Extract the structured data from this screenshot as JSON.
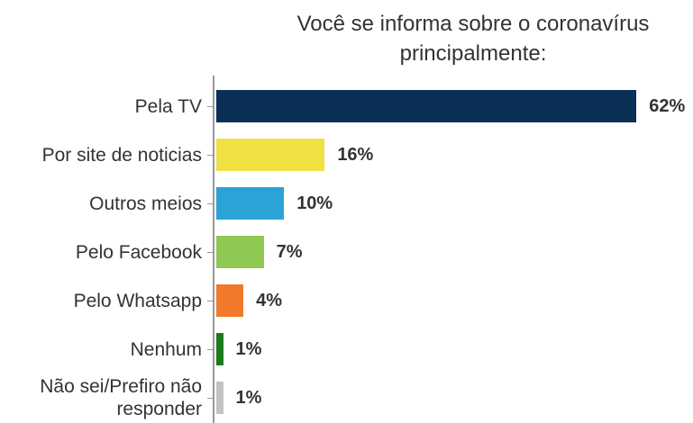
{
  "chart_data": {
    "type": "bar",
    "orientation": "horizontal",
    "title": "Você se informa sobre o coronavírus principalmente:",
    "categories": [
      "Pela TV",
      "Por site de noticias",
      "Outros meios",
      "Pelo Facebook",
      "Pelo Whatsapp",
      "Nenhum",
      "Não sei/Prefiro não responder"
    ],
    "values": [
      62,
      16,
      10,
      7,
      4,
      1,
      1
    ],
    "value_labels": [
      "62%",
      "16%",
      "10%",
      "7%",
      "4%",
      "1%",
      "1%"
    ],
    "colors": [
      "#0b2f57",
      "#f0e044",
      "#2ba3d6",
      "#8fc853",
      "#f07a2a",
      "#1c7a1c",
      "#c2c2c2"
    ]
  }
}
